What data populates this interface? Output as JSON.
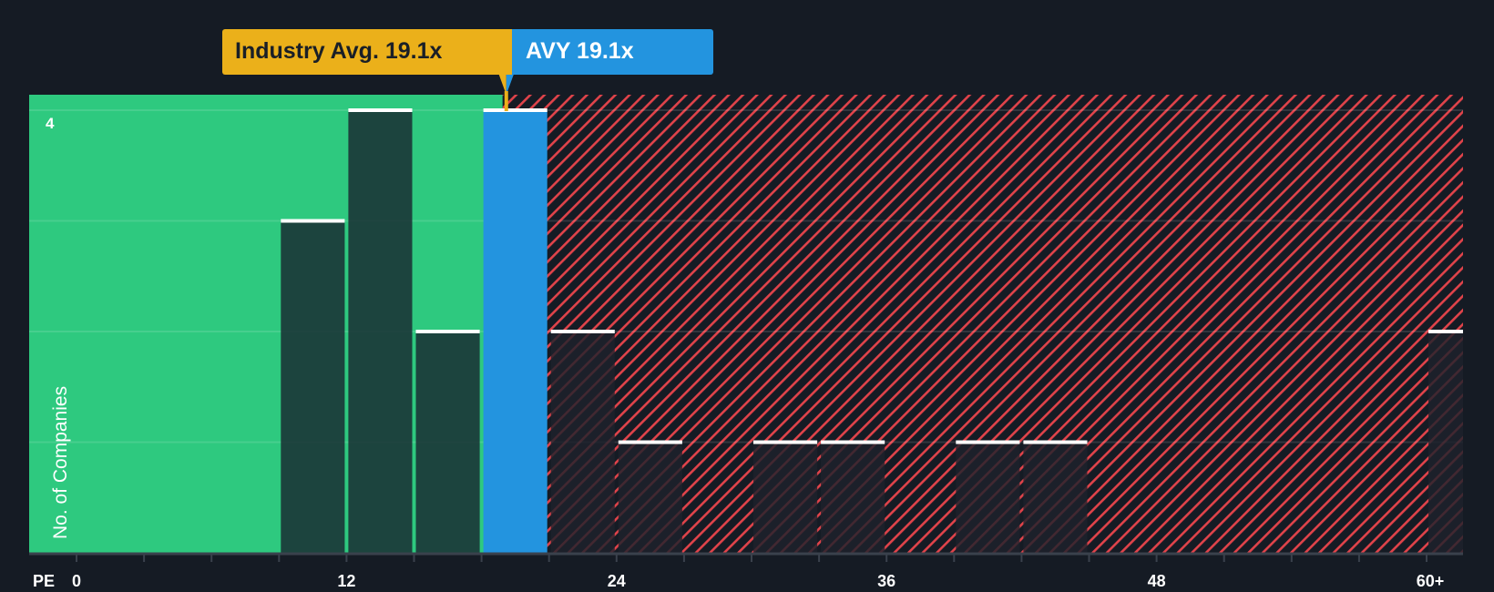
{
  "chart_data": {
    "type": "bar",
    "title": "",
    "xlabel": "PE",
    "ylabel": "No. of Companies",
    "x_tick_labels": [
      "0",
      "12",
      "24",
      "36",
      "48",
      "60+"
    ],
    "y_tick_labels": [
      "4"
    ],
    "ylim": [
      0,
      4
    ],
    "xlim": [
      0,
      61.5
    ],
    "bin_width": 3,
    "bins": [
      {
        "range": "9-12",
        "start": 9,
        "value": 3
      },
      {
        "range": "12-15",
        "start": 12,
        "value": 4
      },
      {
        "range": "15-18",
        "start": 15,
        "value": 2
      },
      {
        "range": "18-21",
        "start": 18,
        "value": 4,
        "highlight": "AVY"
      },
      {
        "range": "21-24",
        "start": 21,
        "value": 2
      },
      {
        "range": "24-27",
        "start": 24,
        "value": 1
      },
      {
        "range": "30-33",
        "start": 30,
        "value": 1
      },
      {
        "range": "33-36",
        "start": 33,
        "value": 1
      },
      {
        "range": "39-42",
        "start": 39,
        "value": 1
      },
      {
        "range": "42-45",
        "start": 42,
        "value": 1
      },
      {
        "range": "60+",
        "start": 60,
        "value": 2
      }
    ],
    "annotations": [
      {
        "label": "Industry Avg. 19.1x",
        "value": 19.1,
        "color": "#ebb01a"
      },
      {
        "label": "AVY 19.1x",
        "value": 19.1,
        "color": "#2394df"
      }
    ],
    "regions": {
      "undervalued_until": 19.1,
      "undervalued_color": "#2ec97f",
      "overvalued_hatch_color": "#e0434a"
    },
    "grid": true,
    "legend": "none"
  },
  "labels": {
    "industry_avg": "Industry Avg. 19.1x",
    "company": "AVY 19.1x",
    "y_axis": "No. of Companies",
    "y_max_tick": "4",
    "x_axis_prefix": "PE",
    "x_ticks": [
      "0",
      "12",
      "24",
      "36",
      "48",
      "60+"
    ]
  },
  "colors": {
    "background": "#151b24",
    "green": "#2ec97f",
    "blue": "#2394df",
    "yellow": "#ebb01a",
    "red_hatch": "#e0434a"
  }
}
